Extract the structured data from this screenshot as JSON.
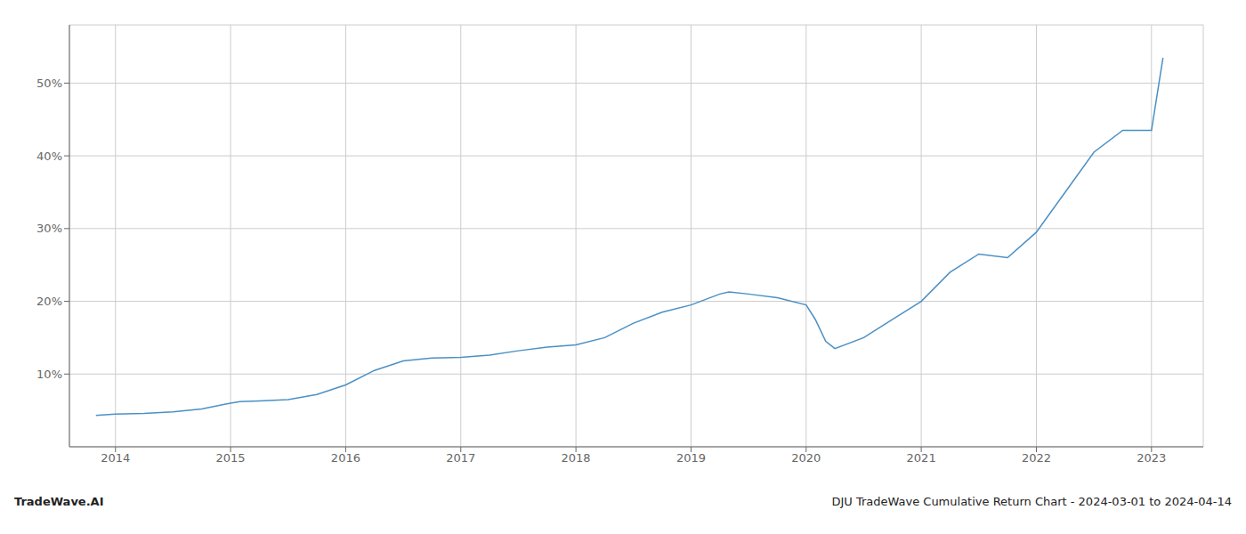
{
  "chart_data": {
    "type": "line",
    "x": [
      2013.83,
      2014.0,
      2014.25,
      2014.5,
      2014.75,
      2015.0,
      2015.08,
      2015.25,
      2015.5,
      2015.75,
      2016.0,
      2016.25,
      2016.5,
      2016.75,
      2017.0,
      2017.25,
      2017.5,
      2017.75,
      2018.0,
      2018.25,
      2018.5,
      2018.75,
      2019.0,
      2019.25,
      2019.33,
      2019.5,
      2019.75,
      2020.0,
      2020.08,
      2020.17,
      2020.25,
      2020.5,
      2020.75,
      2021.0,
      2021.25,
      2021.5,
      2021.75,
      2022.0,
      2022.25,
      2022.5,
      2022.75,
      2023.0,
      2023.1
    ],
    "values": [
      4.3,
      4.5,
      4.6,
      4.8,
      5.2,
      6.0,
      6.2,
      6.3,
      6.5,
      7.2,
      8.5,
      10.5,
      11.8,
      12.2,
      12.3,
      12.6,
      13.2,
      13.7,
      14.0,
      15.0,
      17.0,
      18.5,
      19.5,
      21.0,
      21.3,
      21.0,
      20.5,
      19.5,
      17.5,
      14.5,
      13.5,
      15.0,
      17.5,
      20.0,
      24.0,
      26.5,
      26.0,
      29.5,
      35.0,
      40.5,
      43.5,
      43.5,
      53.5
    ],
    "color": "#4a90c4",
    "xlim": [
      2013.6,
      2023.45
    ],
    "ylim": [
      0,
      58
    ],
    "xticks": [
      2014,
      2015,
      2016,
      2017,
      2018,
      2019,
      2020,
      2021,
      2022,
      2023
    ],
    "yticks": [
      {
        "value": 10,
        "label": "10%"
      },
      {
        "value": 20,
        "label": "20%"
      },
      {
        "value": 30,
        "label": "30%"
      },
      {
        "value": 40,
        "label": "40%"
      },
      {
        "value": 50,
        "label": "50%"
      }
    ],
    "grid": true,
    "annotations": [
      "TradeWave.AI",
      "DJU TradeWave Cumulative Return Chart - 2024-03-01 to 2024-04-14"
    ]
  }
}
